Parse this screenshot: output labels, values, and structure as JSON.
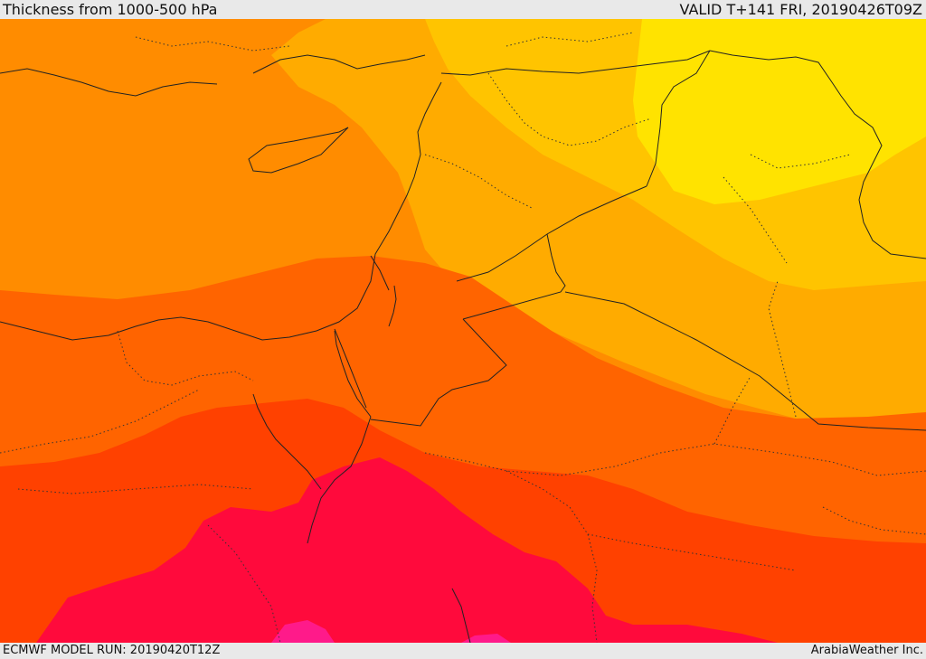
{
  "header": {
    "title": "Thickness from 1000-500 hPa",
    "valid": "VALID T+141 FRI, 20190426T09Z"
  },
  "footer": {
    "model_run": "ECMWF MODEL RUN: 20190420T12Z",
    "credit": "ArabiaWeather Inc."
  },
  "colors": {
    "band_yellow": "#ffe300",
    "band_light_orange": "#ffc400",
    "band_amber": "#ffab00",
    "band_orange": "#ff8c00",
    "band_deep_orange": "#ff6400",
    "band_red_orange": "#ff4100",
    "band_crimson": "#ff0a3c",
    "band_magenta": "#ff1a8a",
    "border_color": "#222222",
    "bar_background": "#e9e9e9"
  }
}
